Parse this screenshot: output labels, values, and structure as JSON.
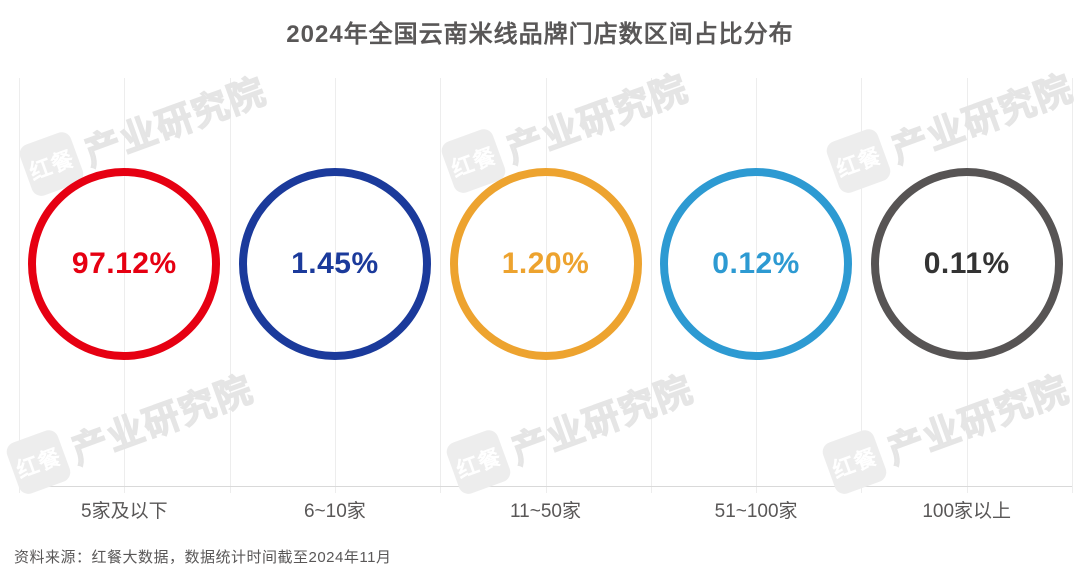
{
  "title": "2024年全国云南米线品牌门店数区间占比分布",
  "source_note": "资料来源：红餐大数据，数据统计时间截至2024年11月",
  "watermark": {
    "logo": "红餐",
    "text": "产业研究院"
  },
  "chart_data": {
    "type": "pie",
    "variant": "outlined-circle-row",
    "title": "2024年全国云南米线品牌门店数区间占比分布",
    "categories": [
      "5家及以下",
      "6~10家",
      "11~50家",
      "51~100家",
      "100家以上"
    ],
    "values": [
      97.12,
      1.45,
      1.2,
      0.12,
      0.11
    ],
    "value_labels": [
      "97.12%",
      "1.45%",
      "1.20%",
      "0.12%",
      "0.11%"
    ],
    "unit": "%",
    "circle_colors": [
      "#E60012",
      "#1B3A9B",
      "#EDA32F",
      "#2D9AD2",
      "#575454"
    ],
    "value_text_colors": [
      "#E60012",
      "#1B3A9B",
      "#EDA32F",
      "#2D9AD2",
      "#333333"
    ],
    "grid": true,
    "legend": "none",
    "source": "资料来源：红餐大数据，数据统计时间截至2024年11月"
  }
}
